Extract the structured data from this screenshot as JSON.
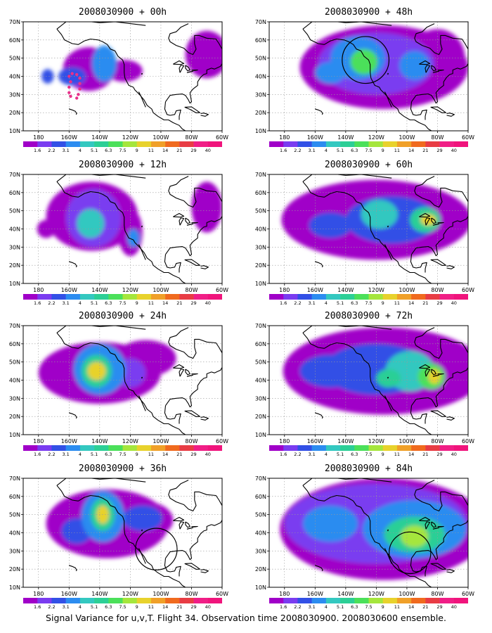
{
  "caption": "Signal Variance for u,v,T. Flight 34. Observation time 2008030900. 2008030600 ensemble.",
  "lat_labels": [
    "70N",
    "60N",
    "50N",
    "40N",
    "30N",
    "20N",
    "10N"
  ],
  "lon_labels": [
    "180",
    "160W",
    "140W",
    "120W",
    "100W",
    "80W",
    "60W"
  ],
  "colorbar": {
    "labels": [
      "1.6",
      "2.2",
      "3.1",
      "4",
      "5.1",
      "6.3",
      "7.5",
      "9",
      "11",
      "14",
      "21",
      "29",
      "40"
    ],
    "colors": [
      "#a000c8",
      "#7a3cf0",
      "#3250e6",
      "#2c8cf0",
      "#33c8c0",
      "#2ccf96",
      "#4be05a",
      "#a5e63c",
      "#e8d22c",
      "#f0a028",
      "#f06a1e",
      "#e83c44",
      "#f01e86"
    ]
  },
  "panels": [
    {
      "title": "2008030900 + 00h",
      "blobs": [
        {
          "lon": -137,
          "lat": 47,
          "rx": 8,
          "ry": 10,
          "level": 3
        },
        {
          "lon": -158,
          "lat": 40,
          "rx": 9,
          "ry": 5,
          "level": 2
        },
        {
          "lon": -174,
          "lat": 40,
          "rx": 4,
          "ry": 4,
          "level": 2
        },
        {
          "lon": -147,
          "lat": 44,
          "rx": 17,
          "ry": 12,
          "level": 0
        },
        {
          "lon": -124,
          "lat": 43,
          "rx": 12,
          "ry": 6,
          "level": 0
        },
        {
          "lon": -70,
          "lat": 52,
          "rx": 14,
          "ry": 13,
          "level": 0
        }
      ],
      "obs": [
        {
          "lon": -159,
          "lat": 37
        },
        {
          "lon": -160,
          "lat": 34
        },
        {
          "lon": -160,
          "lat": 31
        },
        {
          "lon": -159,
          "lat": 29
        },
        {
          "lon": -160,
          "lat": 40
        },
        {
          "lon": -158,
          "lat": 41.5
        },
        {
          "lon": -155,
          "lat": 41
        },
        {
          "lon": -153,
          "lat": 39
        },
        {
          "lon": -153,
          "lat": 36
        },
        {
          "lon": -153,
          "lat": 33
        },
        {
          "lon": -154,
          "lat": 30
        },
        {
          "lon": -155,
          "lat": 28
        }
      ],
      "circles": []
    },
    {
      "title": "2008030900 + 48h",
      "blobs": [
        {
          "lon": -128,
          "lat": 48,
          "rx": 9,
          "ry": 7,
          "level": 6
        },
        {
          "lon": -132,
          "lat": 50,
          "rx": 18,
          "ry": 12,
          "level": 3
        },
        {
          "lon": -95,
          "lat": 46,
          "rx": 10,
          "ry": 8,
          "level": 3
        },
        {
          "lon": -150,
          "lat": 42,
          "rx": 10,
          "ry": 6,
          "level": 3
        },
        {
          "lon": -120,
          "lat": 47,
          "rx": 38,
          "ry": 17,
          "level": 1
        },
        {
          "lon": -115,
          "lat": 45,
          "rx": 55,
          "ry": 23,
          "level": 0
        },
        {
          "lon": -80,
          "lat": 50,
          "rx": 18,
          "ry": 16,
          "level": 0
        }
      ],
      "obs": [],
      "circles": [
        {
          "lon": -127,
          "lat": 49,
          "r": 9
        }
      ]
    },
    {
      "title": "2008030900 + 12h",
      "blobs": [
        {
          "lon": -146,
          "lat": 43,
          "rx": 9,
          "ry": 8,
          "level": 4
        },
        {
          "lon": -118,
          "lat": 35,
          "rx": 4,
          "ry": 5,
          "level": 3
        },
        {
          "lon": -144,
          "lat": 46,
          "rx": 18,
          "ry": 16,
          "level": 1
        },
        {
          "lon": -175,
          "lat": 40,
          "rx": 6,
          "ry": 5,
          "level": 0
        },
        {
          "lon": -145,
          "lat": 47,
          "rx": 30,
          "ry": 19,
          "level": 0
        },
        {
          "lon": -120,
          "lat": 38,
          "rx": 8,
          "ry": 13,
          "level": 0
        },
        {
          "lon": -70,
          "lat": 52,
          "rx": 10,
          "ry": 14,
          "level": 0
        }
      ],
      "obs": [],
      "circles": []
    },
    {
      "title": "2008030900 + 60h",
      "blobs": [
        {
          "lon": -86,
          "lat": 45,
          "rx": 5,
          "ry": 3,
          "level": 8
        },
        {
          "lon": -88,
          "lat": 45,
          "rx": 10,
          "ry": 7,
          "level": 5
        },
        {
          "lon": -118,
          "lat": 48,
          "rx": 12,
          "ry": 8,
          "level": 4
        },
        {
          "lon": -110,
          "lat": 45,
          "rx": 30,
          "ry": 13,
          "level": 2
        },
        {
          "lon": -150,
          "lat": 42,
          "rx": 14,
          "ry": 7,
          "level": 2
        },
        {
          "lon": -120,
          "lat": 45,
          "rx": 62,
          "ry": 22,
          "level": 0
        }
      ],
      "obs": [],
      "circles": []
    },
    {
      "title": "2008030900 + 24h",
      "blobs": [
        {
          "lon": -142,
          "lat": 45,
          "rx": 6,
          "ry": 5,
          "level": 8
        },
        {
          "lon": -142,
          "lat": 45,
          "rx": 10,
          "ry": 9,
          "level": 5
        },
        {
          "lon": -140,
          "lat": 46,
          "rx": 17,
          "ry": 14,
          "level": 3
        },
        {
          "lon": -120,
          "lat": 44,
          "rx": 10,
          "ry": 8,
          "level": 1
        },
        {
          "lon": -140,
          "lat": 44,
          "rx": 40,
          "ry": 17,
          "level": 0
        },
        {
          "lon": -110,
          "lat": 52,
          "rx": 20,
          "ry": 10,
          "level": 0
        }
      ],
      "obs": [],
      "circles": []
    },
    {
      "title": "2008030900 + 72h",
      "blobs": [
        {
          "lon": -82,
          "lat": 42,
          "rx": 4,
          "ry": 4,
          "level": 8
        },
        {
          "lon": -84,
          "lat": 42,
          "rx": 9,
          "ry": 7,
          "level": 6
        },
        {
          "lon": -98,
          "lat": 45,
          "rx": 16,
          "ry": 11,
          "level": 4
        },
        {
          "lon": -112,
          "lat": 41,
          "rx": 8,
          "ry": 5,
          "level": 5
        },
        {
          "lon": -120,
          "lat": 46,
          "rx": 34,
          "ry": 14,
          "level": 2
        },
        {
          "lon": -150,
          "lat": 45,
          "rx": 20,
          "ry": 9,
          "level": 2
        },
        {
          "lon": -115,
          "lat": 45,
          "rx": 66,
          "ry": 24,
          "level": 0
        }
      ],
      "obs": [],
      "circles": []
    },
    {
      "title": "2008030900 + 36h",
      "blobs": [
        {
          "lon": -138,
          "lat": 50,
          "rx": 4,
          "ry": 5,
          "level": 8
        },
        {
          "lon": -138,
          "lat": 50,
          "rx": 8,
          "ry": 9,
          "level": 5
        },
        {
          "lon": -138,
          "lat": 49,
          "rx": 14,
          "ry": 14,
          "level": 3
        },
        {
          "lon": -155,
          "lat": 41,
          "rx": 10,
          "ry": 7,
          "level": 2
        },
        {
          "lon": -112,
          "lat": 48,
          "rx": 13,
          "ry": 7,
          "level": 2
        },
        {
          "lon": -135,
          "lat": 45,
          "rx": 40,
          "ry": 19,
          "level": 0
        },
        {
          "lon": -110,
          "lat": 47,
          "rx": 18,
          "ry": 10,
          "level": 0
        }
      ],
      "obs": [],
      "circles": [
        {
          "lon": -103,
          "lat": 31,
          "r": 8
        }
      ]
    },
    {
      "title": "2008030900 + 84h",
      "blobs": [
        {
          "lon": -95,
          "lat": 38,
          "rx": 9,
          "ry": 6,
          "level": 7
        },
        {
          "lon": -95,
          "lat": 39,
          "rx": 20,
          "ry": 10,
          "level": 5
        },
        {
          "lon": -95,
          "lat": 42,
          "rx": 34,
          "ry": 16,
          "level": 3
        },
        {
          "lon": -150,
          "lat": 45,
          "rx": 18,
          "ry": 10,
          "level": 3
        },
        {
          "lon": -120,
          "lat": 45,
          "rx": 60,
          "ry": 22,
          "level": 1
        },
        {
          "lon": -115,
          "lat": 42,
          "rx": 68,
          "ry": 28,
          "level": 0
        }
      ],
      "obs": [],
      "circles": [
        {
          "lon": -98,
          "lat": 29,
          "r": 8
        }
      ]
    }
  ]
}
